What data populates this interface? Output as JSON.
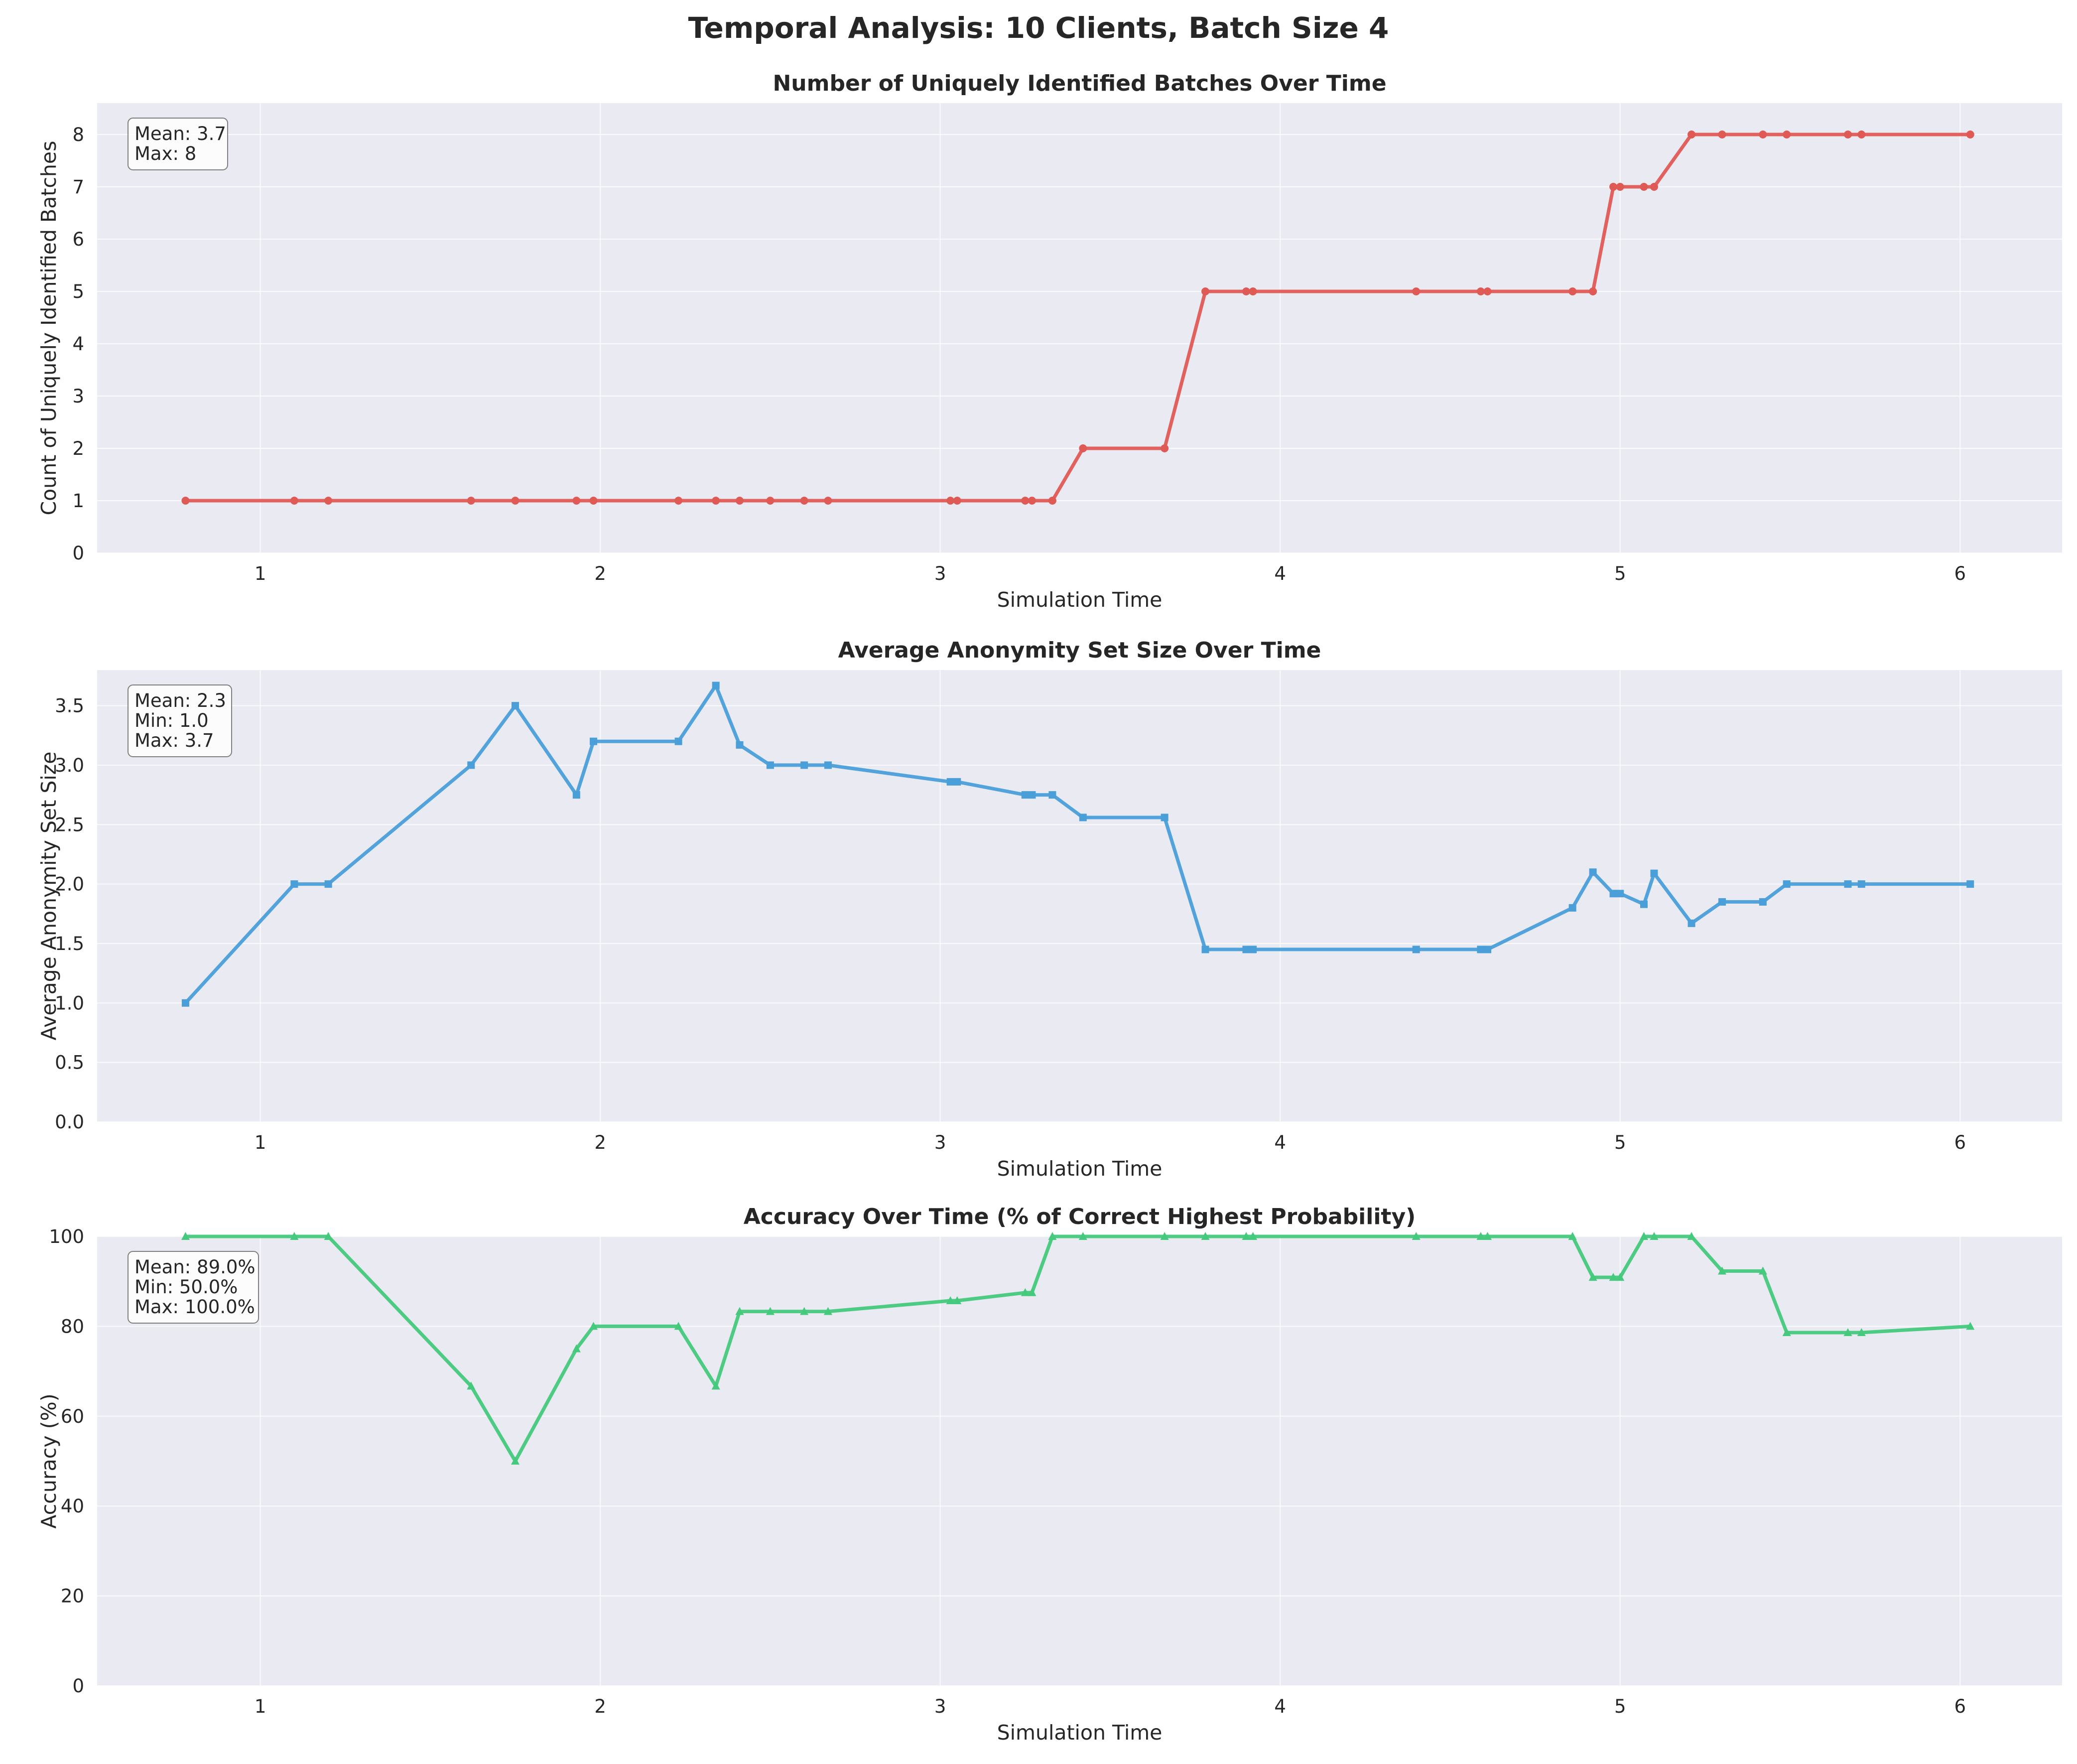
{
  "figure": {
    "title": "Temporal Analysis: 10 Clients, Batch Size 4"
  },
  "chart_data": [
    {
      "type": "line",
      "title": "Number of Uniquely Identified Batches Over Time",
      "xlabel": "Simulation Time",
      "ylabel": "Count of Uniquely Identified Batches",
      "xlim": [
        0.52,
        6.3
      ],
      "ylim": [
        0,
        8.6
      ],
      "xticks": [
        1,
        2,
        3,
        4,
        5,
        6
      ],
      "yticks": [
        0,
        1,
        2,
        3,
        4,
        5,
        6,
        7,
        8
      ],
      "color": "#e05a55",
      "marker": "circle",
      "grid": true,
      "stats": [
        "Mean: 3.7",
        "Max: 8"
      ],
      "stats_position": "top-left",
      "x": [
        0.78,
        1.1,
        1.2,
        1.62,
        1.75,
        1.93,
        1.98,
        2.23,
        2.34,
        2.41,
        2.5,
        2.6,
        2.67,
        3.03,
        3.05,
        3.25,
        3.27,
        3.33,
        3.42,
        3.66,
        3.78,
        3.9,
        3.92,
        4.4,
        4.59,
        4.61,
        4.86,
        4.92,
        4.98,
        5.0,
        5.07,
        5.1,
        5.21,
        5.3,
        5.42,
        5.49,
        5.67,
        5.71,
        6.03
      ],
      "y": [
        1,
        1,
        1,
        1,
        1,
        1,
        1,
        1,
        1,
        1,
        1,
        1,
        1,
        1,
        1,
        1,
        1,
        1,
        2,
        2,
        5,
        5,
        5,
        5,
        5,
        5,
        5,
        5,
        7,
        7,
        7,
        7,
        8,
        8,
        8,
        8,
        8,
        8,
        8
      ]
    },
    {
      "type": "line",
      "title": "Average Anonymity Set Size Over Time",
      "xlabel": "Simulation Time",
      "ylabel": "Average Anonymity Set Size",
      "xlim": [
        0.52,
        6.3
      ],
      "ylim": [
        0,
        3.8
      ],
      "xticks": [
        1,
        2,
        3,
        4,
        5,
        6
      ],
      "yticks": [
        0.0,
        0.5,
        1.0,
        1.5,
        2.0,
        2.5,
        3.0,
        3.5
      ],
      "ytick_labels": [
        "0.0",
        "0.5",
        "1.0",
        "1.5",
        "2.0",
        "2.5",
        "3.0",
        "3.5"
      ],
      "color": "#4a9fd9",
      "marker": "square",
      "grid": true,
      "stats": [
        "Mean: 2.3",
        "Min: 1.0",
        "Max: 3.7"
      ],
      "stats_position": "top-left",
      "x": [
        0.78,
        1.1,
        1.2,
        1.62,
        1.75,
        1.93,
        1.98,
        2.23,
        2.34,
        2.41,
        2.5,
        2.6,
        2.67,
        3.03,
        3.05,
        3.25,
        3.27,
        3.33,
        3.42,
        3.66,
        3.78,
        3.9,
        3.92,
        4.4,
        4.59,
        4.61,
        4.86,
        4.92,
        4.98,
        5.0,
        5.07,
        5.1,
        5.21,
        5.3,
        5.42,
        5.49,
        5.67,
        5.71,
        6.03
      ],
      "y": [
        1.0,
        2.0,
        2.0,
        3.0,
        3.5,
        2.75,
        3.2,
        3.2,
        3.67,
        3.17,
        3.0,
        3.0,
        3.0,
        2.86,
        2.86,
        2.75,
        2.75,
        2.75,
        2.56,
        2.56,
        1.45,
        1.45,
        1.45,
        1.45,
        1.45,
        1.45,
        1.8,
        2.1,
        1.92,
        1.92,
        1.83,
        2.09,
        1.67,
        1.85,
        1.85,
        2.0,
        2.0,
        2.0,
        2.0
      ]
    },
    {
      "type": "line",
      "title": "Accuracy Over Time (% of Correct Highest Probability)",
      "xlabel": "Simulation Time",
      "ylabel": "Accuracy (%)",
      "xlim": [
        0.52,
        6.3
      ],
      "ylim": [
        0,
        100
      ],
      "xticks": [
        1,
        2,
        3,
        4,
        5,
        6
      ],
      "yticks": [
        0,
        20,
        40,
        60,
        80,
        100
      ],
      "color": "#45c97c",
      "marker": "triangle",
      "grid": true,
      "stats": [
        "Mean: 89.0%",
        "Min: 50.0%",
        "Max: 100.0%"
      ],
      "stats_position": "top-left",
      "x": [
        0.78,
        1.1,
        1.2,
        1.62,
        1.75,
        1.93,
        1.98,
        2.23,
        2.34,
        2.41,
        2.5,
        2.6,
        2.67,
        3.03,
        3.05,
        3.25,
        3.27,
        3.33,
        3.42,
        3.66,
        3.78,
        3.9,
        3.92,
        4.4,
        4.59,
        4.61,
        4.86,
        4.92,
        4.98,
        5.0,
        5.07,
        5.1,
        5.21,
        5.3,
        5.42,
        5.49,
        5.67,
        5.71,
        6.03
      ],
      "y": [
        100,
        100,
        100,
        66.7,
        50,
        75,
        80,
        80,
        66.7,
        83.3,
        83.3,
        83.3,
        83.3,
        85.7,
        85.7,
        87.5,
        87.5,
        100,
        100,
        100,
        100,
        100,
        100,
        100,
        100,
        100,
        100,
        90.9,
        90.9,
        90.9,
        100,
        100,
        100,
        92.3,
        92.3,
        78.6,
        78.6,
        78.6,
        80
      ]
    }
  ]
}
